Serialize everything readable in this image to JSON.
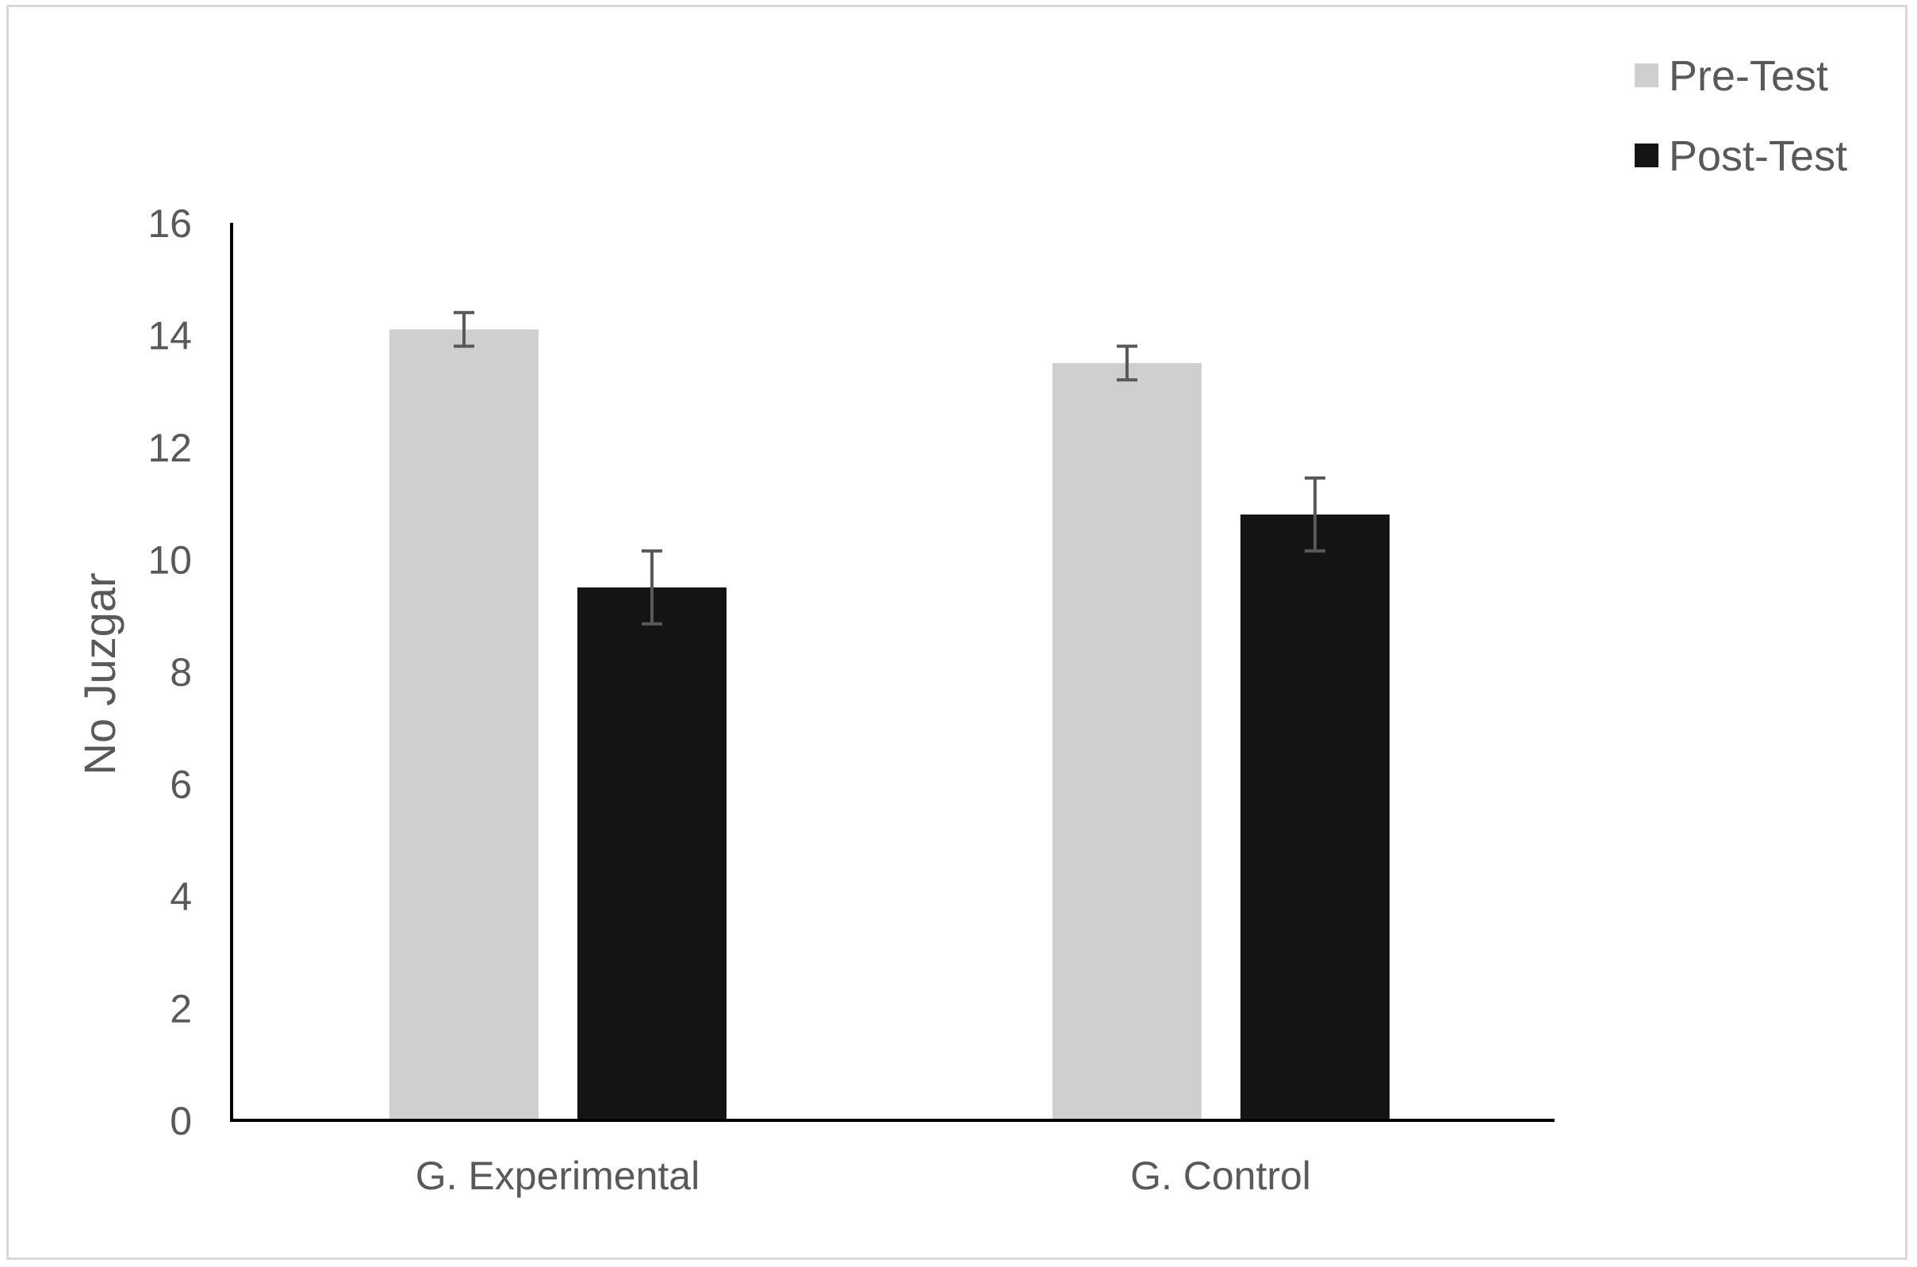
{
  "chart_data": {
    "type": "bar",
    "categories": [
      "G. Experimental",
      "G. Control"
    ],
    "series": [
      {
        "name": "Pre-Test",
        "color": "#d0cfcd",
        "values": [
          14.1,
          13.5
        ],
        "error": [
          0.3,
          0.3
        ]
      },
      {
        "name": "Post-Test",
        "color": "#141414",
        "values": [
          9.5,
          10.8
        ],
        "error": [
          0.65,
          0.65
        ]
      }
    ],
    "title": "",
    "xlabel": "",
    "ylabel": "No Juzgar",
    "ylim": [
      0,
      16
    ],
    "yticks": [
      "0",
      "2",
      "4",
      "6",
      "8",
      "10",
      "12",
      "14",
      "16"
    ],
    "grid": false,
    "legend_position": "top-right",
    "error_bar_color": "#595959"
  }
}
